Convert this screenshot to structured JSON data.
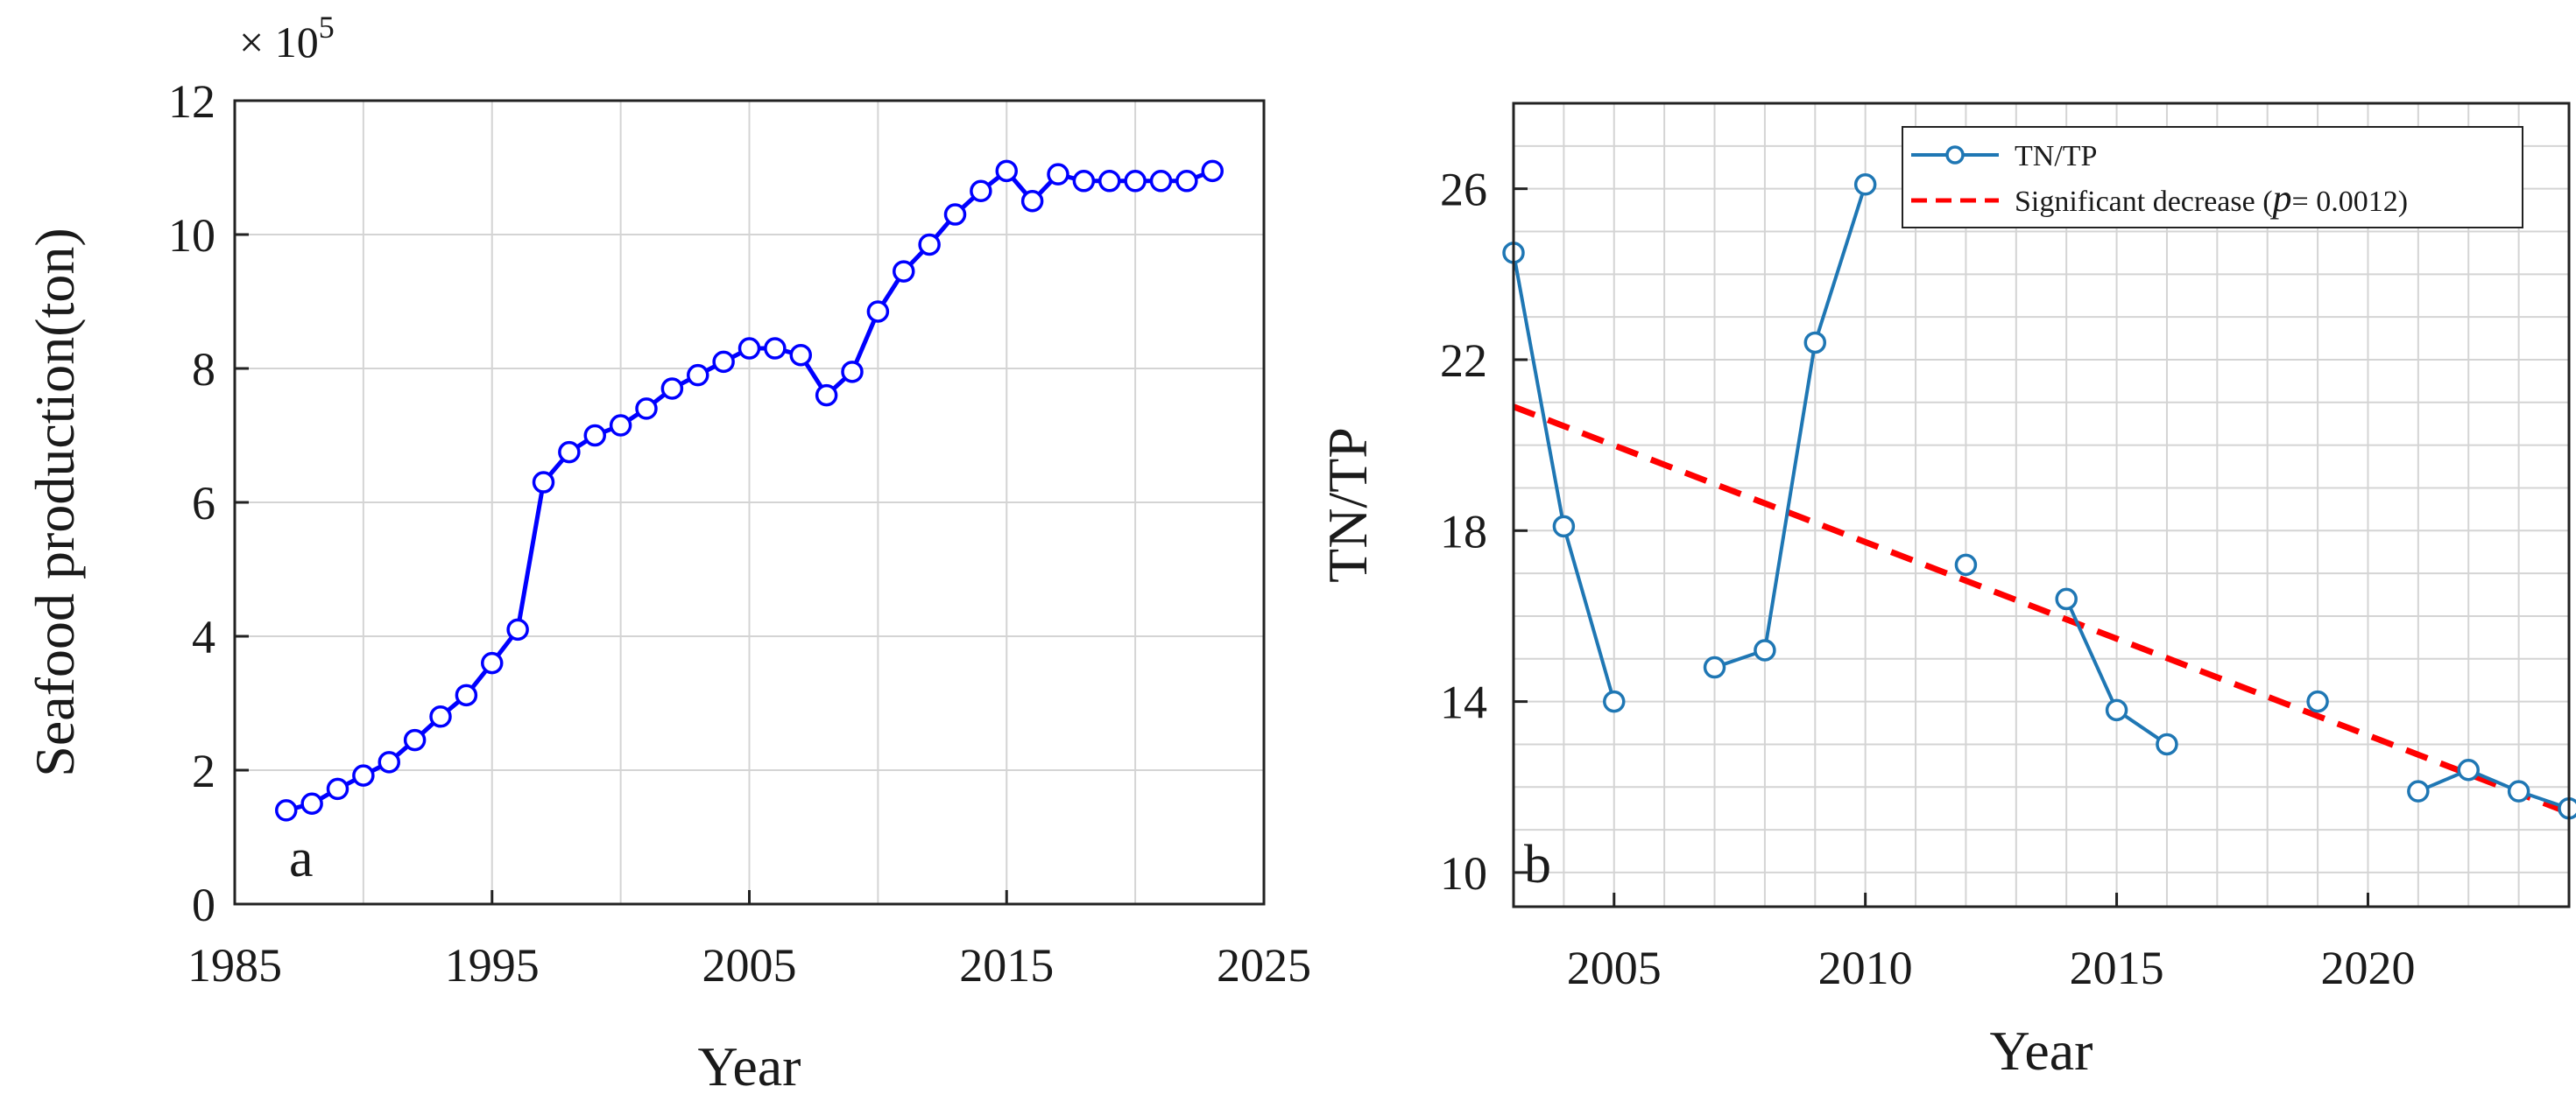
{
  "chart_data": [
    {
      "type": "line",
      "panel_label": "a",
      "title": "",
      "xlabel": "Year",
      "ylabel": "Seafood production(ton)",
      "y_multiplier": "× 10",
      "y_multiplier_exp": "5",
      "xlim": [
        1985,
        2025
      ],
      "ylim": [
        0,
        12
      ],
      "xticks": [
        1985,
        1995,
        2005,
        2015,
        2025
      ],
      "yticks": [
        0,
        2,
        4,
        6,
        8,
        10,
        12
      ],
      "grid": true,
      "legend": null,
      "color": "#0000ff",
      "series": [
        {
          "x": [
            1987,
            1988,
            1989,
            1990,
            1991,
            1992,
            1993,
            1994,
            1995,
            1996,
            1997,
            1998,
            1999,
            2000,
            2001,
            2002,
            2003,
            2004,
            2005,
            2006,
            2007,
            2008,
            2009,
            2010,
            2011,
            2012,
            2013,
            2014,
            2015,
            2016,
            2017,
            2018,
            2019,
            2020,
            2021,
            2022,
            2023
          ],
          "y": [
            1.4,
            1.5,
            1.72,
            1.92,
            2.12,
            2.45,
            2.8,
            3.12,
            3.6,
            4.1,
            6.3,
            6.75,
            7.0,
            7.15,
            7.4,
            7.7,
            7.9,
            8.1,
            8.3,
            8.3,
            8.2,
            7.6,
            7.95,
            8.85,
            9.45,
            9.85,
            10.3,
            10.65,
            10.95,
            10.5,
            10.9,
            10.8,
            10.8,
            10.8,
            10.8,
            10.8,
            10.95
          ]
        }
      ]
    },
    {
      "type": "line",
      "panel_label": "b",
      "title": "",
      "xlabel": "Year",
      "ylabel": "TN/TP",
      "xlim": [
        2003,
        2024
      ],
      "ylim": [
        9.2,
        28
      ],
      "xticks": [
        2005,
        2010,
        2015,
        2020
      ],
      "yticks": [
        10,
        14,
        18,
        22,
        26
      ],
      "grid": true,
      "legend": "top-right",
      "series": [
        {
          "name": "TN/TP",
          "color": "#1f77b4",
          "x": [
            2003,
            2004,
            2005,
            null,
            2007,
            2008,
            2009,
            2010,
            null,
            2012,
            null,
            2014,
            2015,
            2016,
            null,
            2019,
            null,
            2021,
            2022,
            2023,
            2024
          ],
          "y": [
            24.5,
            18.1,
            14.0,
            null,
            14.8,
            15.2,
            22.4,
            26.1,
            null,
            17.2,
            null,
            16.4,
            13.8,
            13.0,
            null,
            14.0,
            null,
            11.9,
            12.4,
            11.9,
            11.5
          ]
        }
      ],
      "trend": {
        "name_prefix": "Significant decrease (",
        "name_p": "p",
        "name_suffix": "= 0.0012)",
        "color": "#ff0000",
        "x": [
          2003,
          2024
        ],
        "y": [
          20.9,
          11.4
        ]
      }
    }
  ]
}
